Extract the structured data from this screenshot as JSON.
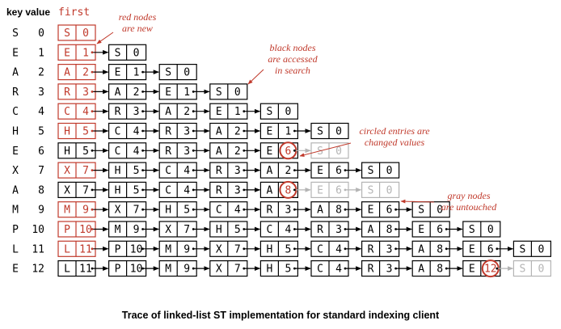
{
  "header": {
    "key_value_label": "key value",
    "first_label": "first"
  },
  "rows": [
    {
      "key": "S",
      "value": "0",
      "nodes": [
        [
          "S",
          "0",
          "red"
        ]
      ]
    },
    {
      "key": "E",
      "value": "1",
      "nodes": [
        [
          "E",
          "1",
          "red"
        ],
        [
          "S",
          "0",
          "black"
        ]
      ]
    },
    {
      "key": "A",
      "value": "2",
      "nodes": [
        [
          "A",
          "2",
          "red"
        ],
        [
          "E",
          "1",
          "black"
        ],
        [
          "S",
          "0",
          "black"
        ]
      ]
    },
    {
      "key": "R",
      "value": "3",
      "nodes": [
        [
          "R",
          "3",
          "red"
        ],
        [
          "A",
          "2",
          "black"
        ],
        [
          "E",
          "1",
          "black"
        ],
        [
          "S",
          "0",
          "black"
        ]
      ]
    },
    {
      "key": "C",
      "value": "4",
      "nodes": [
        [
          "C",
          "4",
          "red"
        ],
        [
          "R",
          "3",
          "black"
        ],
        [
          "A",
          "2",
          "black"
        ],
        [
          "E",
          "1",
          "black"
        ],
        [
          "S",
          "0",
          "black"
        ]
      ]
    },
    {
      "key": "H",
      "value": "5",
      "nodes": [
        [
          "H",
          "5",
          "red"
        ],
        [
          "C",
          "4",
          "black"
        ],
        [
          "R",
          "3",
          "black"
        ],
        [
          "A",
          "2",
          "black"
        ],
        [
          "E",
          "1",
          "black"
        ],
        [
          "S",
          "0",
          "black"
        ]
      ]
    },
    {
      "key": "E",
      "value": "6",
      "nodes": [
        [
          "H",
          "5",
          "black"
        ],
        [
          "C",
          "4",
          "black"
        ],
        [
          "R",
          "3",
          "black"
        ],
        [
          "A",
          "2",
          "black"
        ],
        [
          "E",
          "6",
          "circled"
        ],
        [
          "S",
          "0",
          "gray"
        ]
      ]
    },
    {
      "key": "X",
      "value": "7",
      "nodes": [
        [
          "X",
          "7",
          "red"
        ],
        [
          "H",
          "5",
          "black"
        ],
        [
          "C",
          "4",
          "black"
        ],
        [
          "R",
          "3",
          "black"
        ],
        [
          "A",
          "2",
          "black"
        ],
        [
          "E",
          "6",
          "black"
        ],
        [
          "S",
          "0",
          "black"
        ]
      ]
    },
    {
      "key": "A",
      "value": "8",
      "nodes": [
        [
          "X",
          "7",
          "black"
        ],
        [
          "H",
          "5",
          "black"
        ],
        [
          "C",
          "4",
          "black"
        ],
        [
          "R",
          "3",
          "black"
        ],
        [
          "A",
          "8",
          "circled"
        ],
        [
          "E",
          "6",
          "gray"
        ],
        [
          "S",
          "0",
          "gray"
        ]
      ]
    },
    {
      "key": "M",
      "value": "9",
      "nodes": [
        [
          "M",
          "9",
          "red"
        ],
        [
          "X",
          "7",
          "black"
        ],
        [
          "H",
          "5",
          "black"
        ],
        [
          "C",
          "4",
          "black"
        ],
        [
          "R",
          "3",
          "black"
        ],
        [
          "A",
          "8",
          "black"
        ],
        [
          "E",
          "6",
          "black"
        ],
        [
          "S",
          "0",
          "black"
        ]
      ]
    },
    {
      "key": "P",
      "value": "10",
      "nodes": [
        [
          "P",
          "10",
          "red"
        ],
        [
          "M",
          "9",
          "black"
        ],
        [
          "X",
          "7",
          "black"
        ],
        [
          "H",
          "5",
          "black"
        ],
        [
          "C",
          "4",
          "black"
        ],
        [
          "R",
          "3",
          "black"
        ],
        [
          "A",
          "8",
          "black"
        ],
        [
          "E",
          "6",
          "black"
        ],
        [
          "S",
          "0",
          "black"
        ]
      ]
    },
    {
      "key": "L",
      "value": "11",
      "nodes": [
        [
          "L",
          "11",
          "red"
        ],
        [
          "P",
          "10",
          "black"
        ],
        [
          "M",
          "9",
          "black"
        ],
        [
          "X",
          "7",
          "black"
        ],
        [
          "H",
          "5",
          "black"
        ],
        [
          "C",
          "4",
          "black"
        ],
        [
          "R",
          "3",
          "black"
        ],
        [
          "A",
          "8",
          "black"
        ],
        [
          "E",
          "6",
          "black"
        ],
        [
          "S",
          "0",
          "black"
        ]
      ]
    },
    {
      "key": "E",
      "value": "12",
      "nodes": [
        [
          "L",
          "11",
          "black"
        ],
        [
          "P",
          "10",
          "black"
        ],
        [
          "M",
          "9",
          "black"
        ],
        [
          "X",
          "7",
          "black"
        ],
        [
          "H",
          "5",
          "black"
        ],
        [
          "C",
          "4",
          "black"
        ],
        [
          "R",
          "3",
          "black"
        ],
        [
          "A",
          "8",
          "black"
        ],
        [
          "E",
          "12",
          "circled"
        ],
        [
          "S",
          "0",
          "gray"
        ]
      ]
    }
  ],
  "annotations": {
    "red_nodes": [
      "red nodes",
      "are new"
    ],
    "black_nodes": [
      "black nodes",
      "are accessed",
      "in search"
    ],
    "circled": [
      "circled entries are",
      "changed values"
    ],
    "gray_nodes": [
      "gray nodes",
      "are untouched"
    ]
  },
  "caption": "Trace of linked-list ST implementation for standard indexing client",
  "colors": {
    "red": "#c0392b",
    "black": "#000000",
    "gray": "#b4b4b4",
    "background": "#ffffff"
  }
}
